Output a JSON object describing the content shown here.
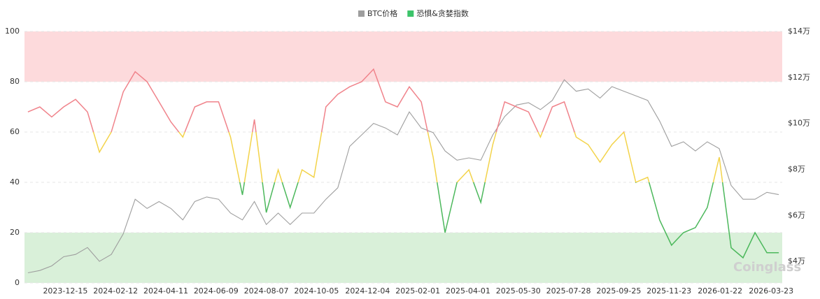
{
  "chart_data": {
    "type": "line",
    "watermark": "Coinglass",
    "x": [
      "2023-11-01",
      "2023-11-15",
      "2023-11-29",
      "2023-12-13",
      "2023-12-27",
      "2024-01-10",
      "2024-01-24",
      "2024-02-07",
      "2024-02-21",
      "2024-03-06",
      "2024-03-20",
      "2024-04-03",
      "2024-04-17",
      "2024-05-01",
      "2024-05-15",
      "2024-05-29",
      "2024-06-12",
      "2024-06-26",
      "2024-07-10",
      "2024-07-24",
      "2024-08-07",
      "2024-08-21",
      "2024-09-04",
      "2024-09-18",
      "2024-10-02",
      "2024-10-16",
      "2024-10-30",
      "2024-11-13",
      "2024-11-27",
      "2024-12-11",
      "2024-12-25",
      "2025-01-08",
      "2025-01-22",
      "2025-02-05",
      "2025-02-19",
      "2025-03-05",
      "2025-03-19",
      "2025-04-02",
      "2025-04-16",
      "2025-04-30",
      "2025-05-14",
      "2025-05-28",
      "2025-06-11",
      "2025-06-25",
      "2025-07-09",
      "2025-07-23",
      "2025-08-06",
      "2025-08-20",
      "2025-09-03",
      "2025-09-17",
      "2025-10-01",
      "2025-10-15",
      "2025-10-29",
      "2025-11-12",
      "2025-11-26",
      "2025-12-10",
      "2025-12-24",
      "2026-01-07",
      "2026-01-21",
      "2026-02-04",
      "2026-02-18",
      "2026-03-04",
      "2026-03-18",
      "2026-04-01"
    ],
    "series": [
      {
        "name": "BTC价格",
        "color": "#9e9e9e",
        "axis": "y2",
        "values": [
          3.5,
          3.6,
          3.8,
          4.2,
          4.3,
          4.6,
          4.0,
          4.3,
          5.2,
          6.7,
          6.3,
          6.6,
          6.3,
          5.8,
          6.6,
          6.8,
          6.7,
          6.1,
          5.8,
          6.6,
          5.6,
          6.1,
          5.6,
          6.1,
          6.1,
          6.7,
          7.2,
          9.0,
          9.5,
          10.0,
          9.8,
          9.5,
          10.5,
          9.8,
          9.6,
          8.8,
          8.4,
          8.5,
          8.4,
          9.5,
          10.3,
          10.8,
          10.9,
          10.6,
          11.0,
          11.9,
          11.4,
          11.5,
          11.1,
          11.6,
          11.4,
          11.2,
          11.0,
          10.1,
          9.0,
          9.2,
          8.8,
          9.2,
          8.9,
          7.3,
          6.7,
          6.7,
          7.0,
          6.9
        ]
      },
      {
        "name": "恐惧&贪婪指数",
        "color": "#3cc46a",
        "values": [
          68,
          70,
          66,
          70,
          73,
          68,
          52,
          60,
          76,
          84,
          80,
          72,
          64,
          58,
          70,
          72,
          72,
          58,
          35,
          65,
          28,
          45,
          30,
          45,
          42,
          70,
          75,
          78,
          80,
          85,
          72,
          70,
          78,
          72,
          50,
          20,
          40,
          45,
          32,
          55,
          72,
          70,
          68,
          58,
          70,
          72,
          58,
          55,
          48,
          55,
          60,
          40,
          42,
          25,
          15,
          20,
          22,
          30,
          50,
          14,
          10,
          20,
          12,
          12
        ],
        "color_zones": [
          {
            "from": 60,
            "to": 100,
            "color": "#f0838b"
          },
          {
            "from": 40,
            "to": 60,
            "color": "#f3d34a"
          },
          {
            "from": 0,
            "to": 40,
            "color": "#4cb85c"
          }
        ]
      }
    ],
    "bands": [
      {
        "from": 80,
        "to": 100,
        "color": "#fddadc"
      },
      {
        "from": 0,
        "to": 20,
        "color": "#d9f0d9"
      }
    ],
    "xlim": [
      "2023-10-28",
      "2026-04-05"
    ],
    "xticks": [
      "2023-12-15",
      "2024-02-12",
      "2024-04-11",
      "2024-06-09",
      "2024-08-07",
      "2024-10-05",
      "2024-12-04",
      "2025-02-01",
      "2025-04-01",
      "2025-05-30",
      "2025-07-28",
      "2025-09-25",
      "2025-11-23",
      "2026-01-22",
      "2026-03-23"
    ],
    "ylim": [
      0,
      100
    ],
    "yticks": [
      0,
      20,
      40,
      60,
      80,
      100
    ],
    "y2lim": [
      3.06,
      14
    ],
    "y2ticks": [
      {
        "value": 4,
        "label": "$4万"
      },
      {
        "value": 6,
        "label": "$6万"
      },
      {
        "value": 8,
        "label": "$8万"
      },
      {
        "value": 10,
        "label": "$10万"
      },
      {
        "value": 12,
        "label": "$12万"
      },
      {
        "value": 14,
        "label": "$14万"
      }
    ],
    "grid": true,
    "legend": "top"
  }
}
